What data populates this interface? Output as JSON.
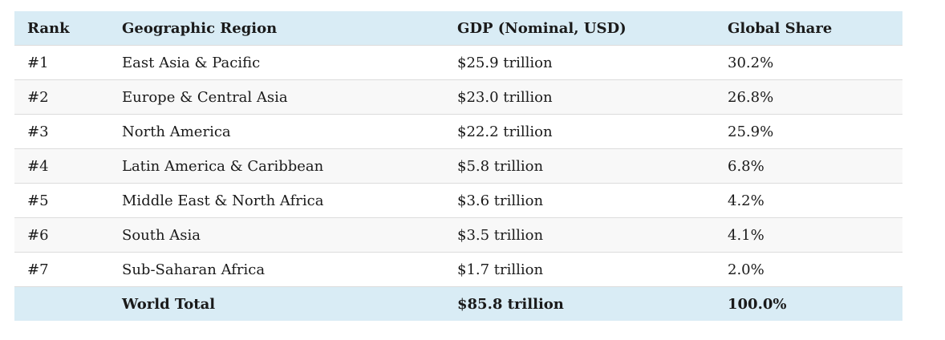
{
  "table": {
    "headers": {
      "rank": "Rank",
      "region": "Geographic Region",
      "gdp": "GDP (Nominal, USD)",
      "share": "Global Share"
    },
    "rows": [
      {
        "rank": "#1",
        "region": "East Asia & Pacific",
        "gdp": "$25.9 trillion",
        "share": "30.2%"
      },
      {
        "rank": "#2",
        "region": "Europe & Central Asia",
        "gdp": "$23.0 trillion",
        "share": "26.8%"
      },
      {
        "rank": "#3",
        "region": "North America",
        "gdp": "$22.2 trillion",
        "share": "25.9%"
      },
      {
        "rank": "#4",
        "region": "Latin America & Caribbean",
        "gdp": "$5.8 trillion",
        "share": "6.8%"
      },
      {
        "rank": "#5",
        "region": "Middle East & North Africa",
        "gdp": "$3.6 trillion",
        "share": "4.2%"
      },
      {
        "rank": "#6",
        "region": "South Asia",
        "gdp": "$3.5 trillion",
        "share": "4.1%"
      },
      {
        "rank": "#7",
        "region": "Sub-Saharan Africa",
        "gdp": "$1.7 trillion",
        "share": "2.0%"
      }
    ],
    "total": {
      "rank": "",
      "region": "World Total",
      "gdp": "$85.8 trillion",
      "share": "100.0%"
    },
    "colors": {
      "header_bg": "#d9ecf5",
      "stripe_bg": "#f8f8f8",
      "border": "#dcdcdc"
    }
  }
}
